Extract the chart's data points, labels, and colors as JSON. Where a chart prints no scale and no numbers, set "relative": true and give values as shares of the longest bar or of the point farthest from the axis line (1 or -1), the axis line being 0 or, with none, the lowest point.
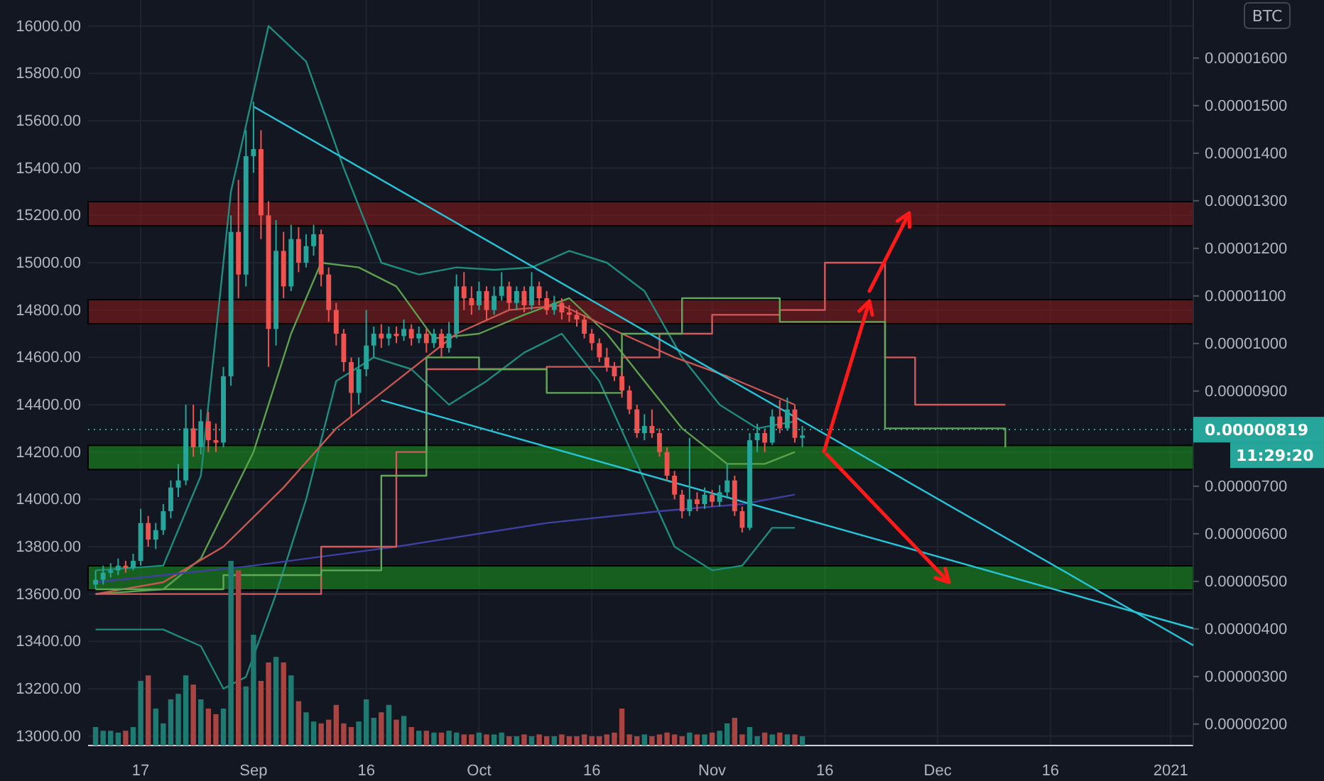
{
  "chart_data": [
    {
      "type": "candlestick",
      "x": [
        "2020-08-11",
        "2020-08-12",
        "2020-08-13",
        "2020-08-14",
        "2020-08-15",
        "2020-08-16",
        "2020-08-17",
        "2020-08-18",
        "2020-08-19",
        "2020-08-20",
        "2020-08-21",
        "2020-08-22",
        "2020-08-23",
        "2020-08-24",
        "2020-08-25",
        "2020-08-26",
        "2020-08-27",
        "2020-08-28",
        "2020-08-29",
        "2020-08-30",
        "2020-08-31",
        "2020-09-01",
        "2020-09-02",
        "2020-09-03",
        "2020-09-04",
        "2020-09-05",
        "2020-09-06",
        "2020-09-07",
        "2020-09-08",
        "2020-09-09",
        "2020-09-10",
        "2020-09-11",
        "2020-09-12",
        "2020-09-13",
        "2020-09-14",
        "2020-09-15",
        "2020-09-16",
        "2020-09-17",
        "2020-09-18",
        "2020-09-19",
        "2020-09-20",
        "2020-09-21",
        "2020-09-22",
        "2020-09-23",
        "2020-09-24",
        "2020-09-25",
        "2020-09-26",
        "2020-09-27",
        "2020-09-28",
        "2020-09-29",
        "2020-09-30",
        "2020-10-01",
        "2020-10-02",
        "2020-10-03",
        "2020-10-04",
        "2020-10-05",
        "2020-10-06",
        "2020-10-07",
        "2020-10-08",
        "2020-10-09",
        "2020-10-10",
        "2020-10-11",
        "2020-10-12",
        "2020-10-13",
        "2020-10-14",
        "2020-10-15",
        "2020-10-16",
        "2020-10-17",
        "2020-10-18",
        "2020-10-19",
        "2020-10-20",
        "2020-10-21",
        "2020-10-22",
        "2020-10-23",
        "2020-10-24",
        "2020-10-25",
        "2020-10-26",
        "2020-10-27",
        "2020-10-28",
        "2020-10-29",
        "2020-10-30",
        "2020-10-31",
        "2020-11-01",
        "2020-11-02",
        "2020-11-03",
        "2020-11-04",
        "2020-11-05",
        "2020-11-06",
        "2020-11-07",
        "2020-11-08",
        "2020-11-09",
        "2020-11-10",
        "2020-11-11",
        "2020-11-12",
        "2020-11-13"
      ],
      "ohlc": [
        [
          13640,
          13700,
          13620,
          13660
        ],
        [
          13660,
          13720,
          13640,
          13690
        ],
        [
          13690,
          13730,
          13670,
          13700
        ],
        [
          13700,
          13750,
          13680,
          13720
        ],
        [
          13720,
          13740,
          13690,
          13710
        ],
        [
          13710,
          13770,
          13700,
          13740
        ],
        [
          13740,
          13960,
          13720,
          13900
        ],
        [
          13900,
          13930,
          13800,
          13830
        ],
        [
          13830,
          13900,
          13790,
          13870
        ],
        [
          13870,
          13980,
          13850,
          13950
        ],
        [
          13950,
          14080,
          13920,
          14050
        ],
        [
          14050,
          14150,
          14010,
          14080
        ],
        [
          14080,
          14400,
          14060,
          14300
        ],
        [
          14300,
          14400,
          14180,
          14220
        ],
        [
          14220,
          14380,
          14190,
          14330
        ],
        [
          14330,
          14370,
          14200,
          14250
        ],
        [
          14250,
          14320,
          14200,
          14240
        ],
        [
          14240,
          14560,
          14220,
          14520
        ],
        [
          14520,
          15200,
          14480,
          15130
        ],
        [
          15130,
          15350,
          14850,
          14950
        ],
        [
          14950,
          15560,
          14900,
          15450
        ],
        [
          15450,
          15680,
          15380,
          15480
        ],
        [
          15480,
          15560,
          15100,
          15200
        ],
        [
          15200,
          15260,
          14560,
          14720
        ],
        [
          14720,
          15180,
          14650,
          15050
        ],
        [
          15050,
          15130,
          14850,
          14900
        ],
        [
          14900,
          15160,
          14880,
          15100
        ],
        [
          15100,
          15150,
          14960,
          15000
        ],
        [
          15000,
          15120,
          14980,
          15070
        ],
        [
          15070,
          15160,
          15030,
          15120
        ],
        [
          15120,
          15140,
          14900,
          14950
        ],
        [
          14950,
          14980,
          14750,
          14800
        ],
        [
          14800,
          14830,
          14650,
          14700
        ],
        [
          14700,
          14720,
          14540,
          14580
        ],
        [
          14580,
          14600,
          14350,
          14450
        ],
        [
          14450,
          14600,
          14400,
          14550
        ],
        [
          14550,
          14800,
          14520,
          14650
        ],
        [
          14650,
          14730,
          14600,
          14700
        ],
        [
          14700,
          14740,
          14640,
          14680
        ],
        [
          14680,
          14730,
          14650,
          14700
        ],
        [
          14700,
          14730,
          14660,
          14690
        ],
        [
          14690,
          14760,
          14670,
          14720
        ],
        [
          14720,
          14740,
          14650,
          14680
        ],
        [
          14680,
          14730,
          14660,
          14700
        ],
        [
          14700,
          14720,
          14620,
          14660
        ],
        [
          14660,
          14720,
          14640,
          14700
        ],
        [
          14700,
          14720,
          14600,
          14640
        ],
        [
          14640,
          14750,
          14620,
          14700
        ],
        [
          14700,
          14950,
          14680,
          14900
        ],
        [
          14900,
          14960,
          14800,
          14850
        ],
        [
          14850,
          14900,
          14780,
          14820
        ],
        [
          14820,
          14920,
          14800,
          14880
        ],
        [
          14880,
          14900,
          14760,
          14800
        ],
        [
          14800,
          14900,
          14780,
          14860
        ],
        [
          14860,
          14960,
          14840,
          14900
        ],
        [
          14900,
          14920,
          14800,
          14830
        ],
        [
          14830,
          14900,
          14800,
          14880
        ],
        [
          14880,
          14900,
          14790,
          14820
        ],
        [
          14820,
          14960,
          14800,
          14900
        ],
        [
          14900,
          14920,
          14820,
          14850
        ],
        [
          14850,
          14880,
          14780,
          14800
        ],
        [
          14800,
          14860,
          14780,
          14830
        ],
        [
          14830,
          14850,
          14760,
          14790
        ],
        [
          14790,
          14820,
          14750,
          14780
        ],
        [
          14780,
          14800,
          14730,
          14760
        ],
        [
          14760,
          14780,
          14680,
          14700
        ],
        [
          14700,
          14720,
          14630,
          14660
        ],
        [
          14660,
          14680,
          14580,
          14600
        ],
        [
          14600,
          14640,
          14540,
          14560
        ],
        [
          14560,
          14580,
          14500,
          14520
        ],
        [
          14520,
          14540,
          14430,
          14460
        ],
        [
          14460,
          14480,
          14360,
          14380
        ],
        [
          14380,
          14400,
          14260,
          14280
        ],
        [
          14280,
          14360,
          14250,
          14310
        ],
        [
          14310,
          14380,
          14260,
          14280
        ],
        [
          14280,
          14300,
          14180,
          14200
        ],
        [
          14200,
          14220,
          14080,
          14100
        ],
        [
          14100,
          14120,
          14000,
          14020
        ],
        [
          14020,
          14040,
          13920,
          13950
        ],
        [
          13950,
          14260,
          13930,
          14000
        ],
        [
          14000,
          14030,
          13950,
          13980
        ],
        [
          13980,
          14050,
          13960,
          14020
        ],
        [
          14020,
          14040,
          13970,
          13990
        ],
        [
          13990,
          14060,
          13970,
          14030
        ],
        [
          14030,
          14150,
          14010,
          14080
        ],
        [
          14080,
          14100,
          13930,
          13950
        ],
        [
          13950,
          13970,
          13860,
          13880
        ],
        [
          13880,
          14280,
          13870,
          14250
        ],
        [
          14250,
          14320,
          14200,
          14280
        ],
        [
          14280,
          14300,
          14200,
          14240
        ],
        [
          14240,
          14380,
          14230,
          14350
        ],
        [
          14350,
          14420,
          14280,
          14300
        ],
        [
          14300,
          14430,
          14290,
          14380
        ],
        [
          14380,
          14400,
          14240,
          14260
        ],
        [
          14260,
          14310,
          14220,
          14270
        ]
      ],
      "series": [
        {
          "type": "line",
          "color": "#1e8c7e",
          "x": [
            "2020-08-11",
            "2020-08-20",
            "2020-08-25",
            "2020-08-29",
            "2020-09-03",
            "2020-09-08",
            "2020-09-13",
            "2020-09-18",
            "2020-09-23",
            "2020-09-28",
            "2020-10-03",
            "2020-10-08",
            "2020-10-13",
            "2020-10-18",
            "2020-10-23",
            "2020-10-28",
            "2020-11-02",
            "2020-11-07",
            "2020-11-12"
          ],
          "values": [
            13700,
            13720,
            14100,
            15300,
            16000,
            15850,
            15400,
            15000,
            14950,
            14980,
            14970,
            14980,
            15050,
            15000,
            14880,
            14600,
            14400,
            14300,
            14330
          ]
        },
        {
          "type": "line",
          "color": "#1e8c7e",
          "x": [
            "2020-08-11",
            "2020-08-20",
            "2020-08-25",
            "2020-08-28",
            "2020-08-31",
            "2020-09-04",
            "2020-09-08",
            "2020-09-12",
            "2020-09-17",
            "2020-09-22",
            "2020-09-27",
            "2020-10-02",
            "2020-10-07",
            "2020-10-12",
            "2020-10-17",
            "2020-10-22",
            "2020-10-27",
            "2020-11-01",
            "2020-11-05",
            "2020-11-09",
            "2020-11-12"
          ],
          "values": [
            13450,
            13450,
            13380,
            13200,
            13250,
            13600,
            14000,
            14500,
            14600,
            14550,
            14400,
            14500,
            14620,
            14700,
            14500,
            14150,
            13800,
            13700,
            13720,
            13880,
            13880
          ]
        },
        {
          "type": "line",
          "color": "#5fa04e",
          "x": [
            "2020-08-11",
            "2020-08-20",
            "2020-08-25",
            "2020-09-01",
            "2020-09-06",
            "2020-09-10",
            "2020-09-15",
            "2020-09-20",
            "2020-09-25",
            "2020-10-01",
            "2020-10-07",
            "2020-10-13",
            "2020-10-18",
            "2020-10-23",
            "2020-10-28",
            "2020-11-03",
            "2020-11-08",
            "2020-11-12"
          ],
          "values": [
            13600,
            13620,
            13750,
            14200,
            14700,
            15000,
            14980,
            14900,
            14680,
            14700,
            14780,
            14850,
            14700,
            14500,
            14300,
            14150,
            14150,
            14200
          ]
        },
        {
          "type": "line",
          "color": "#c8584f",
          "x": [
            "2020-08-11",
            "2020-08-20",
            "2020-08-28",
            "2020-09-05",
            "2020-09-12",
            "2020-09-20",
            "2020-09-28",
            "2020-10-05",
            "2020-10-12",
            "2020-10-20",
            "2020-10-27",
            "2020-11-03",
            "2020-11-12"
          ],
          "values": [
            13600,
            13650,
            13800,
            14050,
            14300,
            14500,
            14700,
            14800,
            14820,
            14700,
            14600,
            14520,
            14400
          ]
        },
        {
          "type": "line",
          "color": "#3f3f9f",
          "x": [
            "2020-08-11",
            "2020-09-01",
            "2020-09-20",
            "2020-10-10",
            "2020-10-25",
            "2020-11-05",
            "2020-11-12"
          ],
          "values": [
            13650,
            13720,
            13800,
            13900,
            13950,
            13980,
            14020
          ]
        },
        {
          "type": "step",
          "color": "#d25a5a",
          "x": [
            "2020-08-11",
            "2020-08-28",
            "2020-09-05",
            "2020-09-10",
            "2020-09-20",
            "2020-09-24",
            "2020-10-10",
            "2020-10-20",
            "2020-10-25",
            "2020-11-01",
            "2020-11-10",
            "2020-11-16",
            "2020-11-20",
            "2020-11-24",
            "2020-11-28",
            "2020-12-10"
          ],
          "values": [
            13600,
            13600,
            13600,
            13800,
            14200,
            14550,
            14560,
            14600,
            14700,
            14780,
            14800,
            15000,
            15000,
            14600,
            14400,
            14400
          ]
        },
        {
          "type": "step",
          "color": "#63a85a",
          "x": [
            "2020-08-11",
            "2020-08-28",
            "2020-09-10",
            "2020-09-18",
            "2020-09-24",
            "2020-10-01",
            "2020-10-10",
            "2020-10-20",
            "2020-10-28",
            "2020-11-04",
            "2020-11-10",
            "2020-11-15",
            "2020-11-24",
            "2020-12-10"
          ],
          "values": [
            13620,
            13680,
            13700,
            14100,
            14600,
            14550,
            14450,
            14700,
            14850,
            14850,
            14750,
            14750,
            14300,
            14220
          ]
        },
        {
          "type": "line",
          "color": "#26c6da",
          "x": [
            "2020-09-01",
            "2021-01-04"
          ],
          "values": [
            15660,
            13383
          ]
        },
        {
          "type": "line",
          "color": "#26c6da",
          "x": [
            "2020-09-18",
            "2021-01-04"
          ],
          "values": [
            14419,
            13455
          ]
        }
      ],
      "xlim": [
        "2020-08-10",
        "2021-01-04"
      ],
      "xticks": [
        {
          "value": "2020-08-17",
          "label": "17"
        },
        {
          "value": "2020-09-01",
          "label": "Sep"
        },
        {
          "value": "2020-09-16",
          "label": "16"
        },
        {
          "value": "2020-10-01",
          "label": "Oct"
        },
        {
          "value": "2020-10-16",
          "label": "16"
        },
        {
          "value": "2020-11-01",
          "label": "Nov"
        },
        {
          "value": "2020-11-16",
          "label": "16"
        },
        {
          "value": "2020-12-01",
          "label": "Dec"
        },
        {
          "value": "2020-12-16",
          "label": "16"
        },
        {
          "value": "2021-01-01",
          "label": "2021"
        }
      ],
      "ylim": [
        12960,
        16110
      ],
      "yticks": [
        {
          "value": 13000,
          "label": "13000.00"
        },
        {
          "value": 13200,
          "label": "13200.00"
        },
        {
          "value": 13400,
          "label": "13400.00"
        },
        {
          "value": 13600,
          "label": "13600.00"
        },
        {
          "value": 13800,
          "label": "13800.00"
        },
        {
          "value": 14000,
          "label": "14000.00"
        },
        {
          "value": 14200,
          "label": "14200.00"
        },
        {
          "value": 14400,
          "label": "14400.00"
        },
        {
          "value": 14600,
          "label": "14600.00"
        },
        {
          "value": 14800,
          "label": "14800.00"
        },
        {
          "value": 15000,
          "label": "15000.00"
        },
        {
          "value": 15200,
          "label": "15200.00"
        },
        {
          "value": 15400,
          "label": "15400.00"
        },
        {
          "value": 15600,
          "label": "15600.00"
        },
        {
          "value": 15800,
          "label": "15800.00"
        },
        {
          "value": 16000,
          "label": "16000.00"
        }
      ],
      "y2lim": [
        1.55e-06,
        1.722e-05
      ],
      "y2ticks": [
        {
          "value": 2e-06,
          "label": "0.00000200"
        },
        {
          "value": 3e-06,
          "label": "0.00000300"
        },
        {
          "value": 4e-06,
          "label": "0.00000400"
        },
        {
          "value": 5e-06,
          "label": "0.00000500"
        },
        {
          "value": 6e-06,
          "label": "0.00000600"
        },
        {
          "value": 7e-06,
          "label": "0.00000700"
        },
        {
          "value": 9e-06,
          "label": "0.00000900"
        },
        {
          "value": 1e-05,
          "label": "0.00001000"
        },
        {
          "value": 1.1e-05,
          "label": "0.00001100"
        },
        {
          "value": 1.2e-05,
          "label": "0.00001200"
        },
        {
          "value": 1.3e-05,
          "label": "0.00001300"
        },
        {
          "value": 1.4e-05,
          "label": "0.00001400"
        },
        {
          "value": 1.5e-05,
          "label": "0.00001500"
        },
        {
          "value": 1.6e-05,
          "label": "0.00001600"
        }
      ],
      "grid": true,
      "ref_lines": [
        {
          "axis": "y2",
          "value": 8.19e-06,
          "label": "0.00000819",
          "color": "#26a69a",
          "line_style": "dotted"
        }
      ],
      "bands": [
        {
          "axis": "y",
          "from": 15156,
          "to": 15258,
          "color": "#8b1a1a"
        },
        {
          "axis": "y",
          "from": 14742,
          "to": 14844,
          "color": "#8b1a1a"
        },
        {
          "axis": "y",
          "from": 14126,
          "to": 14228,
          "color": "#1c9a1c"
        },
        {
          "axis": "y",
          "from": 13617,
          "to": 13719,
          "color": "#1c9a1c"
        }
      ],
      "annotations": [
        "BTC",
        "11:29:20"
      ]
    },
    {
      "type": "bar",
      "relative": true,
      "tick_labels": false,
      "xlim": [
        "2020-08-10",
        "2021-01-04"
      ],
      "x": [
        "2020-08-11",
        "2020-08-12",
        "2020-08-13",
        "2020-08-14",
        "2020-08-15",
        "2020-08-16",
        "2020-08-17",
        "2020-08-18",
        "2020-08-19",
        "2020-08-20",
        "2020-08-21",
        "2020-08-22",
        "2020-08-23",
        "2020-08-24",
        "2020-08-25",
        "2020-08-26",
        "2020-08-27",
        "2020-08-28",
        "2020-08-29",
        "2020-08-30",
        "2020-08-31",
        "2020-09-01",
        "2020-09-02",
        "2020-09-03",
        "2020-09-04",
        "2020-09-05",
        "2020-09-06",
        "2020-09-07",
        "2020-09-08",
        "2020-09-09",
        "2020-09-10",
        "2020-09-11",
        "2020-09-12",
        "2020-09-13",
        "2020-09-14",
        "2020-09-15",
        "2020-09-16",
        "2020-09-17",
        "2020-09-18",
        "2020-09-19",
        "2020-09-20",
        "2020-09-21",
        "2020-09-22",
        "2020-09-23",
        "2020-09-24",
        "2020-09-25",
        "2020-09-26",
        "2020-09-27",
        "2020-09-28",
        "2020-09-29",
        "2020-09-30",
        "2020-10-01",
        "2020-10-02",
        "2020-10-03",
        "2020-10-04",
        "2020-10-05",
        "2020-10-06",
        "2020-10-07",
        "2020-10-08",
        "2020-10-09",
        "2020-10-10",
        "2020-10-11",
        "2020-10-12",
        "2020-10-13",
        "2020-10-14",
        "2020-10-15",
        "2020-10-16",
        "2020-10-17",
        "2020-10-18",
        "2020-10-19",
        "2020-10-20",
        "2020-10-21",
        "2020-10-22",
        "2020-10-23",
        "2020-10-24",
        "2020-10-25",
        "2020-10-26",
        "2020-10-27",
        "2020-10-28",
        "2020-10-29",
        "2020-10-30",
        "2020-10-31",
        "2020-11-01",
        "2020-11-02",
        "2020-11-03",
        "2020-11-04",
        "2020-11-05",
        "2020-11-06",
        "2020-11-07",
        "2020-11-08",
        "2020-11-09",
        "2020-11-10",
        "2020-11-11",
        "2020-11-12",
        "2020-11-13"
      ],
      "values": [
        0.1,
        0.08,
        0.08,
        0.07,
        0.08,
        0.1,
        0.35,
        0.38,
        0.2,
        0.12,
        0.25,
        0.28,
        0.38,
        0.33,
        0.25,
        0.2,
        0.17,
        0.2,
        1,
        0.95,
        0.32,
        0.6,
        0.35,
        0.45,
        0.48,
        0.45,
        0.38,
        0.24,
        0.18,
        0.13,
        0.12,
        0.14,
        0.22,
        0.12,
        0.1,
        0.13,
        0.25,
        0.15,
        0.18,
        0.22,
        0.14,
        0.16,
        0.1,
        0.08,
        0.08,
        0.07,
        0.07,
        0.08,
        0.07,
        0.06,
        0.06,
        0.07,
        0.06,
        0.06,
        0.07,
        0.05,
        0.05,
        0.06,
        0.05,
        0.06,
        0.05,
        0.05,
        0.06,
        0.05,
        0.05,
        0.06,
        0.05,
        0.05,
        0.06,
        0.07,
        0.2,
        0.06,
        0.05,
        0.06,
        0.05,
        0.06,
        0.07,
        0.06,
        0.05,
        0.07,
        0.06,
        0.06,
        0.07,
        0.08,
        0.12,
        0.15,
        0.06,
        0.1,
        0.05,
        0.07,
        0.06,
        0.07,
        0.06,
        0.06,
        0.05
      ],
      "colors": [
        "#1f7a72",
        "#1f7a72",
        "#1f7a72",
        "#1f7a72",
        "#a84442",
        "#1f7a72",
        "#1f7a72",
        "#a84442",
        "#1f7a72",
        "#1f7a72",
        "#1f7a72",
        "#1f7a72",
        "#1f7a72",
        "#a84442",
        "#1f7a72",
        "#a84442",
        "#a84442",
        "#1f7a72",
        "#1f7a72",
        "#a84442",
        "#1f7a72",
        "#1f7a72",
        "#a84442",
        "#a84442",
        "#1f7a72",
        "#a84442",
        "#1f7a72",
        "#a84442",
        "#1f7a72",
        "#1f7a72",
        "#a84442",
        "#a84442",
        "#a84442",
        "#a84442",
        "#a84442",
        "#1f7a72",
        "#1f7a72",
        "#1f7a72",
        "#a84442",
        "#1f7a72",
        "#a84442",
        "#1f7a72",
        "#a84442",
        "#1f7a72",
        "#a84442",
        "#1f7a72",
        "#a84442",
        "#1f7a72",
        "#1f7a72",
        "#a84442",
        "#a84442",
        "#1f7a72",
        "#a84442",
        "#1f7a72",
        "#1f7a72",
        "#a84442",
        "#1f7a72",
        "#a84442",
        "#1f7a72",
        "#a84442",
        "#a84442",
        "#1f7a72",
        "#a84442",
        "#a84442",
        "#a84442",
        "#a84442",
        "#a84442",
        "#a84442",
        "#a84442",
        "#a84442",
        "#a84442",
        "#a84442",
        "#a84442",
        "#1f7a72",
        "#a84442",
        "#a84442",
        "#a84442",
        "#a84442",
        "#a84442",
        "#1f7a72",
        "#a84442",
        "#1f7a72",
        "#a84442",
        "#1f7a72",
        "#1f7a72",
        "#a84442",
        "#a84442",
        "#1f7a72",
        "#1f7a72",
        "#a84442",
        "#1f7a72",
        "#a84442",
        "#1f7a72",
        "#a84442",
        "#1f7a72"
      ]
    }
  ]
}
